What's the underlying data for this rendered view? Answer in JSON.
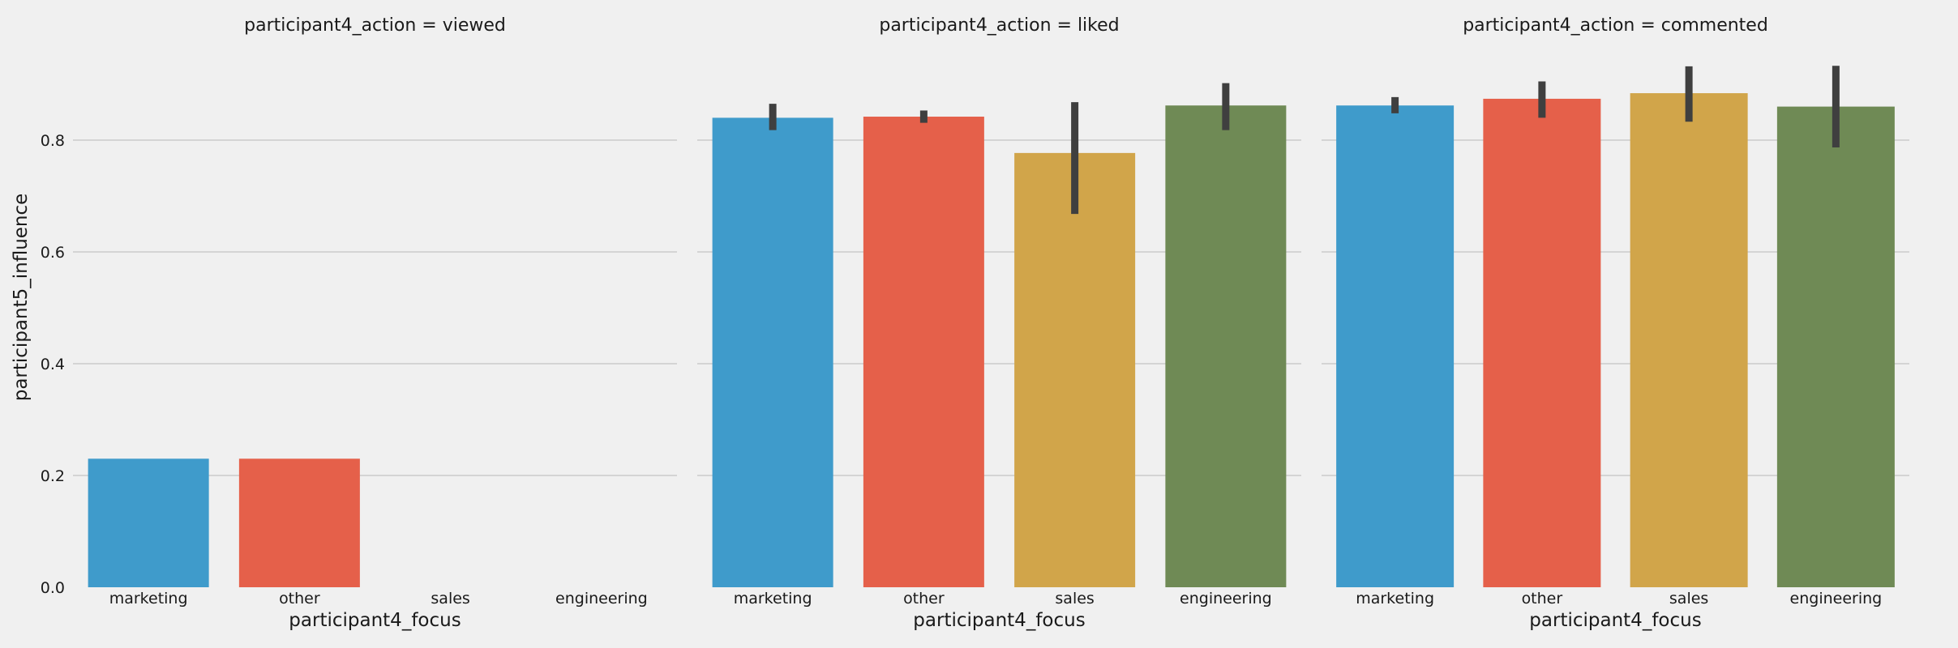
{
  "chart_data": {
    "type": "bar",
    "ylabel": "participant5_influence",
    "xlabel": "participant4_focus",
    "ylim": [
      0,
      0.95
    ],
    "yticks": [
      "0.0",
      "0.2",
      "0.4",
      "0.6",
      "0.8"
    ],
    "grid": "horizontal",
    "categories": [
      "marketing",
      "other",
      "sales",
      "engineering"
    ],
    "colors": [
      "#3f9bcb",
      "#e5604a",
      "#d1a54a",
      "#6f8a55"
    ],
    "facets": [
      {
        "title": "participant4_action = viewed",
        "values": [
          0.23,
          0.23,
          null,
          null
        ],
        "errors": [
          null,
          null,
          null,
          null
        ]
      },
      {
        "title": "participant4_action = liked",
        "values": [
          0.84,
          0.842,
          0.777,
          0.862
        ],
        "errors": [
          [
            0.818,
            0.865
          ],
          [
            0.831,
            0.853
          ],
          [
            0.668,
            0.868
          ],
          [
            0.818,
            0.902
          ]
        ]
      },
      {
        "title": "participant4_action = commented",
        "values": [
          0.862,
          0.874,
          0.884,
          0.86
        ],
        "errors": [
          [
            0.848,
            0.877
          ],
          [
            0.84,
            0.905
          ],
          [
            0.833,
            0.932
          ],
          [
            0.787,
            0.933
          ]
        ]
      }
    ]
  }
}
